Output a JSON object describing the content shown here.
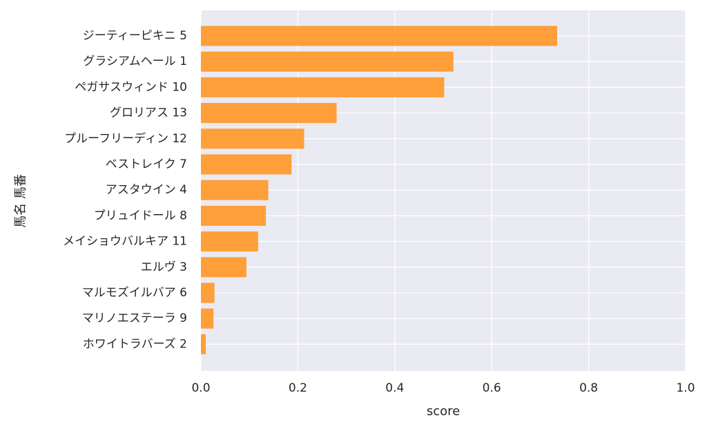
{
  "chart_data": {
    "type": "bar",
    "orientation": "horizontal",
    "xlabel": "score",
    "ylabel": "馬名 馬番",
    "xlim": [
      0.0,
      1.0
    ],
    "xticks": [
      "0.0",
      "0.2",
      "0.4",
      "0.6",
      "0.8",
      "1.0"
    ],
    "grid": true,
    "colors": {
      "bar": "#FF9B2F",
      "plot_background": "#EAEAF2",
      "grid": "#FFFFFF",
      "text": "#262626"
    },
    "categories": [
      "ジーティーピキニ 5",
      "グラシアムヘール 1",
      "ペガサスウィンド 10",
      "グロリアス 13",
      "プルーフリーディン 12",
      "ベストレイク 7",
      "アスタウイン 4",
      "プリュイドール 8",
      "メイショウバルキア 11",
      "エルヴ 3",
      "マルモズイルバア 6",
      "マリノエステーラ 9",
      "ホワイトラバーズ 2"
    ],
    "values": [
      0.735,
      0.521,
      0.502,
      0.28,
      0.213,
      0.187,
      0.139,
      0.134,
      0.118,
      0.094,
      0.028,
      0.026,
      0.01
    ]
  }
}
